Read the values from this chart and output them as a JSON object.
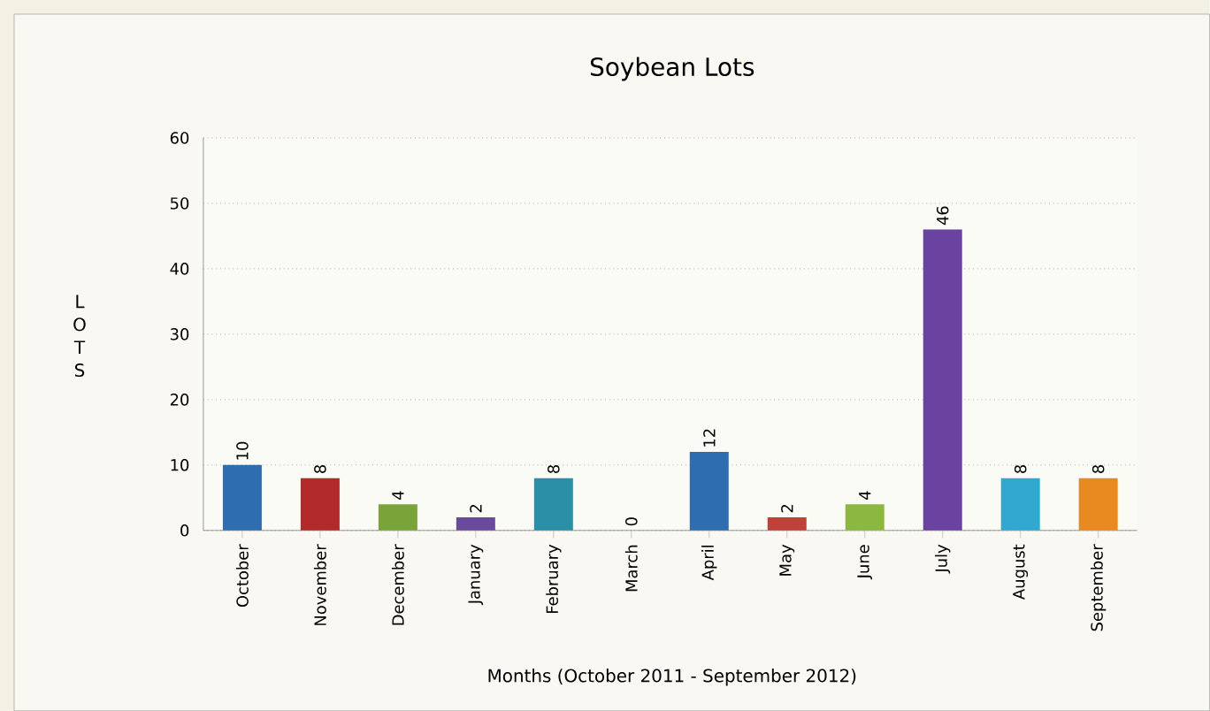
{
  "chart_data": {
    "type": "bar",
    "title": "Soybean Lots",
    "xlabel": "Months (October 2011 - September 2012)",
    "ylabel": "L O T S",
    "categories": [
      "October",
      "November",
      "December",
      "January",
      "February",
      "March",
      "April",
      "May",
      "June",
      "July",
      "August",
      "September"
    ],
    "values": [
      10,
      8,
      4,
      2,
      8,
      0,
      12,
      2,
      4,
      46,
      8,
      8
    ],
    "colors": [
      "#2e6db0",
      "#b22a2a",
      "#7aa33a",
      "#6a4a9a",
      "#2a90a8",
      "#3a8ac0",
      "#2e6db0",
      "#c0403a",
      "#8cb840",
      "#6a43a0",
      "#30a8d0",
      "#e88a20"
    ],
    "ylim": [
      0,
      60
    ],
    "yticks": [
      0,
      10,
      20,
      30,
      40,
      50,
      60
    ],
    "grid": "y",
    "data_labels": true
  }
}
